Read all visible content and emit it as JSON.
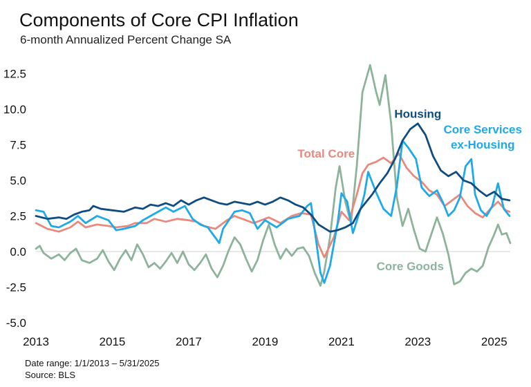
{
  "header": {
    "title": "Components of Core CPI Inflation",
    "subtitle": "6-month Annualized Percent Change SA"
  },
  "footer": {
    "date_range": "Date range: 1/1/2013 – 5/31/2025",
    "source": "Source: BLS"
  },
  "chart_data": {
    "type": "line",
    "title": "Components of Core CPI Inflation",
    "subtitle": "6-month Annualized Percent Change SA",
    "xlabel": "",
    "ylabel": "",
    "xlim": [
      2013.0,
      2025.42
    ],
    "ylim": [
      -5.0,
      13.5
    ],
    "x_ticks": [
      2013,
      2015,
      2017,
      2019,
      2021,
      2023,
      2025
    ],
    "x_tick_labels": [
      "2013",
      "2015",
      "2017",
      "2019",
      "2021",
      "2023",
      "2025"
    ],
    "y_ticks": [
      12.5,
      10.0,
      7.5,
      5.0,
      2.5,
      0.0,
      -2.5,
      -5.0
    ],
    "y_tick_labels": [
      "12.5",
      "10.0",
      "7.5",
      "5.0",
      "2.5",
      "0.0",
      "-2.5",
      "-5.0"
    ],
    "grid": false,
    "legend": "inline labels",
    "series": [
      {
        "name": "Housing",
        "label_lines": [
          "Housing"
        ],
        "color": "#0f4c81",
        "points": [
          [
            2013.0,
            2.5
          ],
          [
            2013.3,
            2.3
          ],
          [
            2013.6,
            2.4
          ],
          [
            2013.8,
            2.3
          ],
          [
            2014.0,
            2.6
          ],
          [
            2014.2,
            2.8
          ],
          [
            2014.4,
            2.9
          ],
          [
            2014.5,
            3.2
          ],
          [
            2014.7,
            3.0
          ],
          [
            2015.0,
            2.9
          ],
          [
            2015.3,
            2.8
          ],
          [
            2015.6,
            3.1
          ],
          [
            2015.8,
            3.0
          ],
          [
            2016.0,
            3.3
          ],
          [
            2016.2,
            3.2
          ],
          [
            2016.4,
            3.4
          ],
          [
            2016.6,
            3.2
          ],
          [
            2016.8,
            3.6
          ],
          [
            2017.0,
            3.3
          ],
          [
            2017.2,
            3.6
          ],
          [
            2017.4,
            3.8
          ],
          [
            2017.6,
            3.6
          ],
          [
            2017.8,
            3.4
          ],
          [
            2018.0,
            3.3
          ],
          [
            2018.2,
            3.5
          ],
          [
            2018.4,
            3.4
          ],
          [
            2018.6,
            3.3
          ],
          [
            2018.8,
            3.5
          ],
          [
            2019.0,
            3.3
          ],
          [
            2019.2,
            3.5
          ],
          [
            2019.4,
            3.8
          ],
          [
            2019.6,
            3.6
          ],
          [
            2019.8,
            3.3
          ],
          [
            2020.0,
            3.1
          ],
          [
            2020.2,
            2.6
          ],
          [
            2020.4,
            1.9
          ],
          [
            2020.7,
            1.4
          ],
          [
            2020.9,
            1.5
          ],
          [
            2021.1,
            1.7
          ],
          [
            2021.3,
            2.0
          ],
          [
            2021.5,
            3.0
          ],
          [
            2021.8,
            4.0
          ],
          [
            2022.0,
            4.8
          ],
          [
            2022.2,
            5.5
          ],
          [
            2022.4,
            6.5
          ],
          [
            2022.6,
            7.8
          ],
          [
            2022.8,
            8.6
          ],
          [
            2023.0,
            9.0
          ],
          [
            2023.2,
            8.2
          ],
          [
            2023.4,
            6.7
          ],
          [
            2023.6,
            5.7
          ],
          [
            2023.8,
            5.3
          ],
          [
            2024.0,
            5.6
          ],
          [
            2024.2,
            5.0
          ],
          [
            2024.4,
            4.8
          ],
          [
            2024.6,
            4.3
          ],
          [
            2024.8,
            3.9
          ],
          [
            2025.0,
            4.2
          ],
          [
            2025.2,
            3.7
          ],
          [
            2025.4,
            3.6
          ]
        ]
      },
      {
        "name": "Core Services ex-Housing",
        "label_lines": [
          "Core Services",
          "ex-Housing"
        ],
        "color": "#1ea9e8",
        "points": [
          [
            2013.0,
            2.9
          ],
          [
            2013.2,
            2.8
          ],
          [
            2013.4,
            1.8
          ],
          [
            2013.6,
            1.7
          ],
          [
            2013.9,
            2.1
          ],
          [
            2014.1,
            2.5
          ],
          [
            2014.3,
            2.0
          ],
          [
            2014.6,
            2.5
          ],
          [
            2014.9,
            2.2
          ],
          [
            2015.1,
            1.5
          ],
          [
            2015.3,
            1.6
          ],
          [
            2015.6,
            1.8
          ],
          [
            2015.8,
            2.2
          ],
          [
            2016.0,
            2.5
          ],
          [
            2016.2,
            2.8
          ],
          [
            2016.4,
            3.1
          ],
          [
            2016.6,
            2.8
          ],
          [
            2016.9,
            3.2
          ],
          [
            2017.1,
            2.3
          ],
          [
            2017.3,
            1.9
          ],
          [
            2017.5,
            1.7
          ],
          [
            2017.8,
            0.6
          ],
          [
            2017.9,
            1.6
          ],
          [
            2018.2,
            2.8
          ],
          [
            2018.4,
            2.9
          ],
          [
            2018.6,
            2.7
          ],
          [
            2018.8,
            1.6
          ],
          [
            2019.0,
            2.2
          ],
          [
            2019.3,
            1.7
          ],
          [
            2019.6,
            2.3
          ],
          [
            2019.9,
            2.5
          ],
          [
            2020.1,
            3.2
          ],
          [
            2020.2,
            3.4
          ],
          [
            2020.3,
            1.5
          ],
          [
            2020.45,
            -1.5
          ],
          [
            2020.55,
            -2.2
          ],
          [
            2020.7,
            -1.0
          ],
          [
            2020.9,
            2.0
          ],
          [
            2021.0,
            4.1
          ],
          [
            2021.15,
            3.5
          ],
          [
            2021.3,
            1.3
          ],
          [
            2021.5,
            3.0
          ],
          [
            2021.6,
            4.0
          ],
          [
            2021.7,
            5.6
          ],
          [
            2021.9,
            4.2
          ],
          [
            2022.1,
            3.0
          ],
          [
            2022.3,
            2.5
          ],
          [
            2022.45,
            4.6
          ],
          [
            2022.6,
            7.8
          ],
          [
            2022.75,
            7.3
          ],
          [
            2022.95,
            6.5
          ],
          [
            2023.1,
            4.5
          ],
          [
            2023.3,
            3.9
          ],
          [
            2023.5,
            4.3
          ],
          [
            2023.65,
            3.5
          ],
          [
            2023.8,
            2.5
          ],
          [
            2023.95,
            2.9
          ],
          [
            2024.1,
            3.8
          ],
          [
            2024.25,
            6.0
          ],
          [
            2024.4,
            6.5
          ],
          [
            2024.5,
            4.0
          ],
          [
            2024.65,
            2.9
          ],
          [
            2024.8,
            2.5
          ],
          [
            2024.95,
            3.2
          ],
          [
            2025.1,
            4.8
          ],
          [
            2025.25,
            3.0
          ],
          [
            2025.4,
            2.5
          ]
        ]
      },
      {
        "name": "Total Core",
        "label_lines": [
          "Total Core"
        ],
        "color": "#e8897c",
        "points": [
          [
            2013.0,
            2.0
          ],
          [
            2013.3,
            1.6
          ],
          [
            2013.6,
            1.4
          ],
          [
            2013.9,
            1.7
          ],
          [
            2014.1,
            2.1
          ],
          [
            2014.3,
            1.7
          ],
          [
            2014.6,
            1.9
          ],
          [
            2014.9,
            1.8
          ],
          [
            2015.1,
            1.7
          ],
          [
            2015.4,
            1.8
          ],
          [
            2015.6,
            2.0
          ],
          [
            2015.9,
            2.0
          ],
          [
            2016.1,
            2.3
          ],
          [
            2016.4,
            2.1
          ],
          [
            2016.7,
            2.3
          ],
          [
            2017.0,
            2.2
          ],
          [
            2017.2,
            2.1
          ],
          [
            2017.4,
            1.8
          ],
          [
            2017.7,
            1.6
          ],
          [
            2018.0,
            2.2
          ],
          [
            2018.2,
            2.5
          ],
          [
            2018.4,
            2.3
          ],
          [
            2018.7,
            2.0
          ],
          [
            2018.9,
            2.2
          ],
          [
            2019.1,
            2.4
          ],
          [
            2019.4,
            2.0
          ],
          [
            2019.7,
            2.5
          ],
          [
            2019.95,
            2.7
          ],
          [
            2020.2,
            2.6
          ],
          [
            2020.4,
            0.5
          ],
          [
            2020.55,
            -0.4
          ],
          [
            2020.8,
            1.0
          ],
          [
            2021.0,
            2.8
          ],
          [
            2021.2,
            2.2
          ],
          [
            2021.4,
            4.0
          ],
          [
            2021.55,
            5.5
          ],
          [
            2021.7,
            6.1
          ],
          [
            2021.9,
            6.3
          ],
          [
            2022.1,
            6.6
          ],
          [
            2022.3,
            6.2
          ],
          [
            2022.5,
            6.9
          ],
          [
            2022.7,
            5.9
          ],
          [
            2022.9,
            5.3
          ],
          [
            2023.1,
            4.9
          ],
          [
            2023.3,
            4.3
          ],
          [
            2023.5,
            4.0
          ],
          [
            2023.7,
            3.2
          ],
          [
            2023.9,
            3.6
          ],
          [
            2024.1,
            4.0
          ],
          [
            2024.3,
            3.2
          ],
          [
            2024.5,
            2.7
          ],
          [
            2024.7,
            2.4
          ],
          [
            2024.9,
            3.0
          ],
          [
            2025.1,
            3.5
          ],
          [
            2025.3,
            2.9
          ],
          [
            2025.4,
            2.8
          ]
        ]
      },
      {
        "name": "Core Goods",
        "label_lines": [
          "Core Goods"
        ],
        "color": "#8db39b",
        "points": [
          [
            2013.0,
            0.2
          ],
          [
            2013.1,
            0.4
          ],
          [
            2013.2,
            -0.1
          ],
          [
            2013.4,
            -0.5
          ],
          [
            2013.6,
            -0.2
          ],
          [
            2013.75,
            -0.6
          ],
          [
            2013.9,
            -0.1
          ],
          [
            2014.05,
            0.2
          ],
          [
            2014.2,
            -0.6
          ],
          [
            2014.4,
            -0.8
          ],
          [
            2014.6,
            -0.5
          ],
          [
            2014.75,
            0.1
          ],
          [
            2014.9,
            -0.7
          ],
          [
            2015.05,
            -1.3
          ],
          [
            2015.2,
            -0.5
          ],
          [
            2015.35,
            0.1
          ],
          [
            2015.5,
            -0.6
          ],
          [
            2015.65,
            0.5
          ],
          [
            2015.8,
            -0.2
          ],
          [
            2015.95,
            -1.1
          ],
          [
            2016.1,
            -0.8
          ],
          [
            2016.25,
            -1.2
          ],
          [
            2016.4,
            -0.7
          ],
          [
            2016.55,
            -0.1
          ],
          [
            2016.7,
            -0.8
          ],
          [
            2016.85,
            0.0
          ],
          [
            2017.0,
            -0.9
          ],
          [
            2017.15,
            -1.3
          ],
          [
            2017.3,
            -0.8
          ],
          [
            2017.45,
            -0.2
          ],
          [
            2017.6,
            -1.2
          ],
          [
            2017.75,
            -1.8
          ],
          [
            2017.9,
            -1.0
          ],
          [
            2018.05,
            0.1
          ],
          [
            2018.2,
            1.0
          ],
          [
            2018.35,
            0.5
          ],
          [
            2018.5,
            -0.5
          ],
          [
            2018.65,
            -1.4
          ],
          [
            2018.8,
            -0.6
          ],
          [
            2018.95,
            0.8
          ],
          [
            2019.1,
            1.9
          ],
          [
            2019.25,
            0.5
          ],
          [
            2019.4,
            -0.5
          ],
          [
            2019.55,
            0.2
          ],
          [
            2019.7,
            -0.3
          ],
          [
            2019.85,
            0.2
          ],
          [
            2020.0,
            0.3
          ],
          [
            2020.15,
            -0.3
          ],
          [
            2020.3,
            -1.5
          ],
          [
            2020.45,
            -2.4
          ],
          [
            2020.55,
            -1.4
          ],
          [
            2020.7,
            1.0
          ],
          [
            2020.85,
            4.5
          ],
          [
            2020.95,
            6.0
          ],
          [
            2021.1,
            3.5
          ],
          [
            2021.25,
            2.0
          ],
          [
            2021.4,
            6.0
          ],
          [
            2021.55,
            11.2
          ],
          [
            2021.75,
            13.1
          ],
          [
            2021.9,
            11.3
          ],
          [
            2022.0,
            10.3
          ],
          [
            2022.15,
            12.4
          ],
          [
            2022.3,
            9.0
          ],
          [
            2022.45,
            3.8
          ],
          [
            2022.6,
            1.8
          ],
          [
            2022.75,
            3.0
          ],
          [
            2022.9,
            1.5
          ],
          [
            2023.05,
            0.2
          ],
          [
            2023.2,
            0.0
          ],
          [
            2023.35,
            1.2
          ],
          [
            2023.5,
            2.4
          ],
          [
            2023.65,
            1.3
          ],
          [
            2023.8,
            -0.2
          ],
          [
            2023.95,
            -2.3
          ],
          [
            2024.1,
            -2.1
          ],
          [
            2024.25,
            -1.5
          ],
          [
            2024.4,
            -1.2
          ],
          [
            2024.55,
            -1.4
          ],
          [
            2024.7,
            -1.0
          ],
          [
            2024.85,
            0.3
          ],
          [
            2025.0,
            1.2
          ],
          [
            2025.1,
            1.9
          ],
          [
            2025.2,
            1.2
          ],
          [
            2025.32,
            1.3
          ],
          [
            2025.42,
            0.6
          ]
        ]
      }
    ]
  }
}
